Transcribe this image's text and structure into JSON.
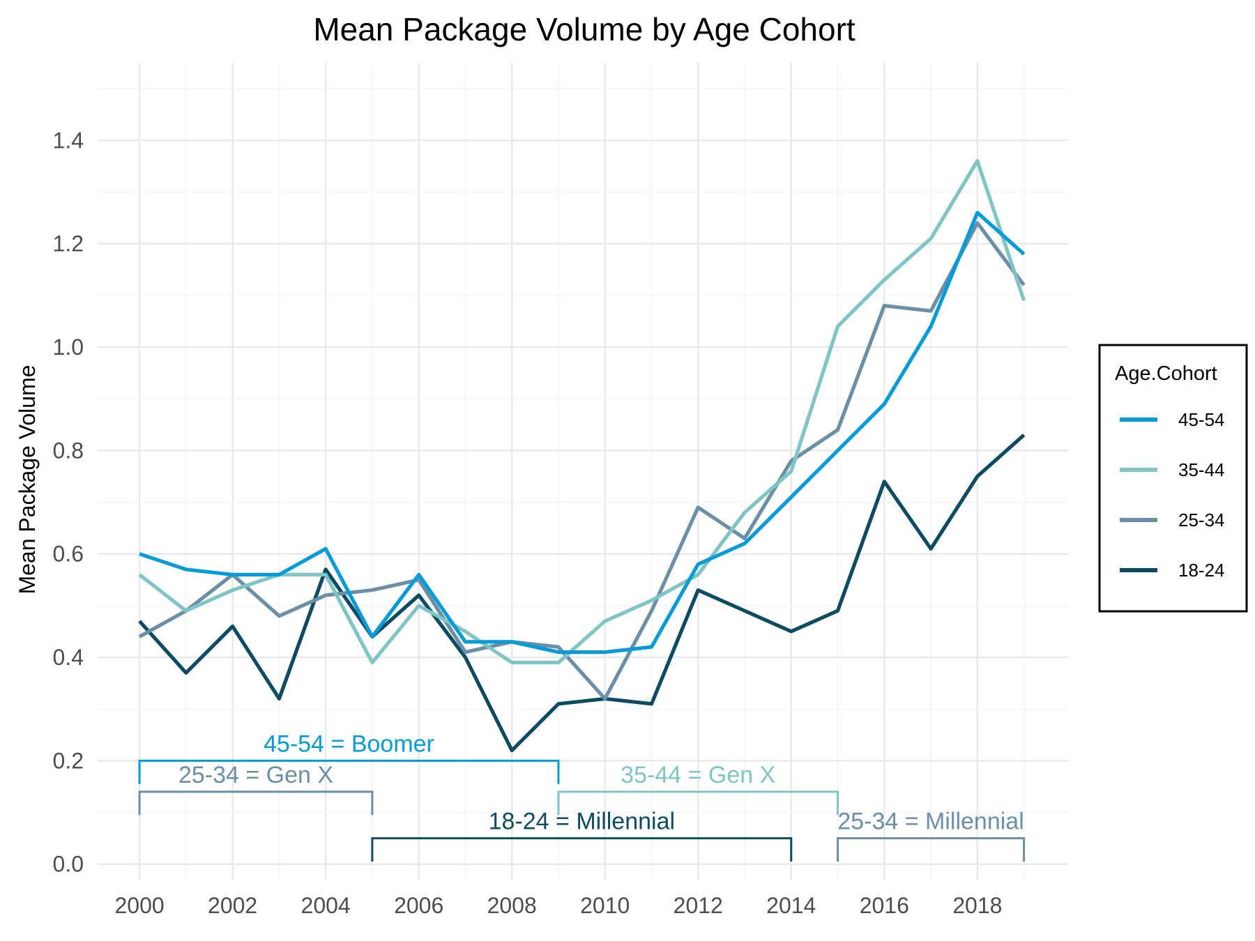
{
  "chart_data": {
    "type": "line",
    "title": "Mean Package Volume by Age Cohort",
    "xlabel": "",
    "ylabel": "Mean Package Volume",
    "x": [
      2000,
      2001,
      2002,
      2003,
      2004,
      2005,
      2006,
      2007,
      2008,
      2009,
      2010,
      2011,
      2012,
      2013,
      2014,
      2015,
      2016,
      2017,
      2018,
      2019
    ],
    "x_ticks": [
      "2000",
      "2002",
      "2004",
      "2006",
      "2008",
      "2010",
      "2012",
      "2014",
      "2016",
      "2018"
    ],
    "y_ticks": [
      "0.0",
      "0.2",
      "0.4",
      "0.6",
      "0.8",
      "1.0",
      "1.2",
      "1.4"
    ],
    "xlim": [
      1999.1,
      2019.95
    ],
    "ylim": [
      -0.03,
      1.55
    ],
    "grid": true,
    "legend": {
      "title": "Age.Cohort",
      "position": "right"
    },
    "series": [
      {
        "name": "45-54",
        "color": "#049BD8",
        "values": [
          0.6,
          0.57,
          0.56,
          0.56,
          0.61,
          0.44,
          0.56,
          0.43,
          0.43,
          0.41,
          0.41,
          0.42,
          0.58,
          0.62,
          0.71,
          0.8,
          0.89,
          1.04,
          1.26,
          1.18
        ]
      },
      {
        "name": "35-44",
        "color": "#7FC5C5",
        "values": [
          0.56,
          0.49,
          0.53,
          0.56,
          0.56,
          0.39,
          0.5,
          0.45,
          0.39,
          0.39,
          0.47,
          0.51,
          0.56,
          0.68,
          0.76,
          1.04,
          1.13,
          1.21,
          1.36,
          1.09
        ]
      },
      {
        "name": "25-34",
        "color": "#6A8FA6",
        "values": [
          0.44,
          0.49,
          0.56,
          0.48,
          0.52,
          0.53,
          0.55,
          0.41,
          0.43,
          0.42,
          0.32,
          0.49,
          0.69,
          0.63,
          0.78,
          0.84,
          1.08,
          1.07,
          1.24,
          1.12
        ]
      },
      {
        "name": "18-24",
        "color": "#0C4B63",
        "values": [
          0.47,
          0.37,
          0.46,
          0.32,
          0.57,
          0.44,
          0.52,
          0.4,
          0.22,
          0.31,
          0.32,
          0.31,
          0.53,
          0.49,
          0.45,
          0.49,
          0.74,
          0.61,
          0.75,
          0.83
        ]
      }
    ],
    "annotations": [
      {
        "label": "45-54 = Boomer",
        "color": "#049BD8",
        "x_start": 2000,
        "x_end": 2009,
        "y": 0.2,
        "y_drop": 0.155,
        "label_x": 2004.5
      },
      {
        "label": "25-34 = Gen X",
        "color": "#6A8FA6",
        "x_start": 2000,
        "x_end": 2005,
        "y": 0.14,
        "y_drop": 0.095,
        "label_x": 2002.5
      },
      {
        "label": "35-44 = Gen X",
        "color": "#7FC5C5",
        "x_start": 2009,
        "x_end": 2015,
        "y": 0.14,
        "y_drop": 0.095,
        "label_x": 2012
      },
      {
        "label": "18-24 = Millennial",
        "color": "#0C4B63",
        "x_start": 2005,
        "x_end": 2014,
        "y": 0.05,
        "y_drop": 0.005,
        "label_x": 2009.5
      },
      {
        "label": "25-34 = Millennial",
        "color": "#6A8FA6",
        "x_start": 2015,
        "x_end": 2019,
        "y": 0.05,
        "y_drop": 0.005,
        "label_x": 2017
      }
    ]
  }
}
